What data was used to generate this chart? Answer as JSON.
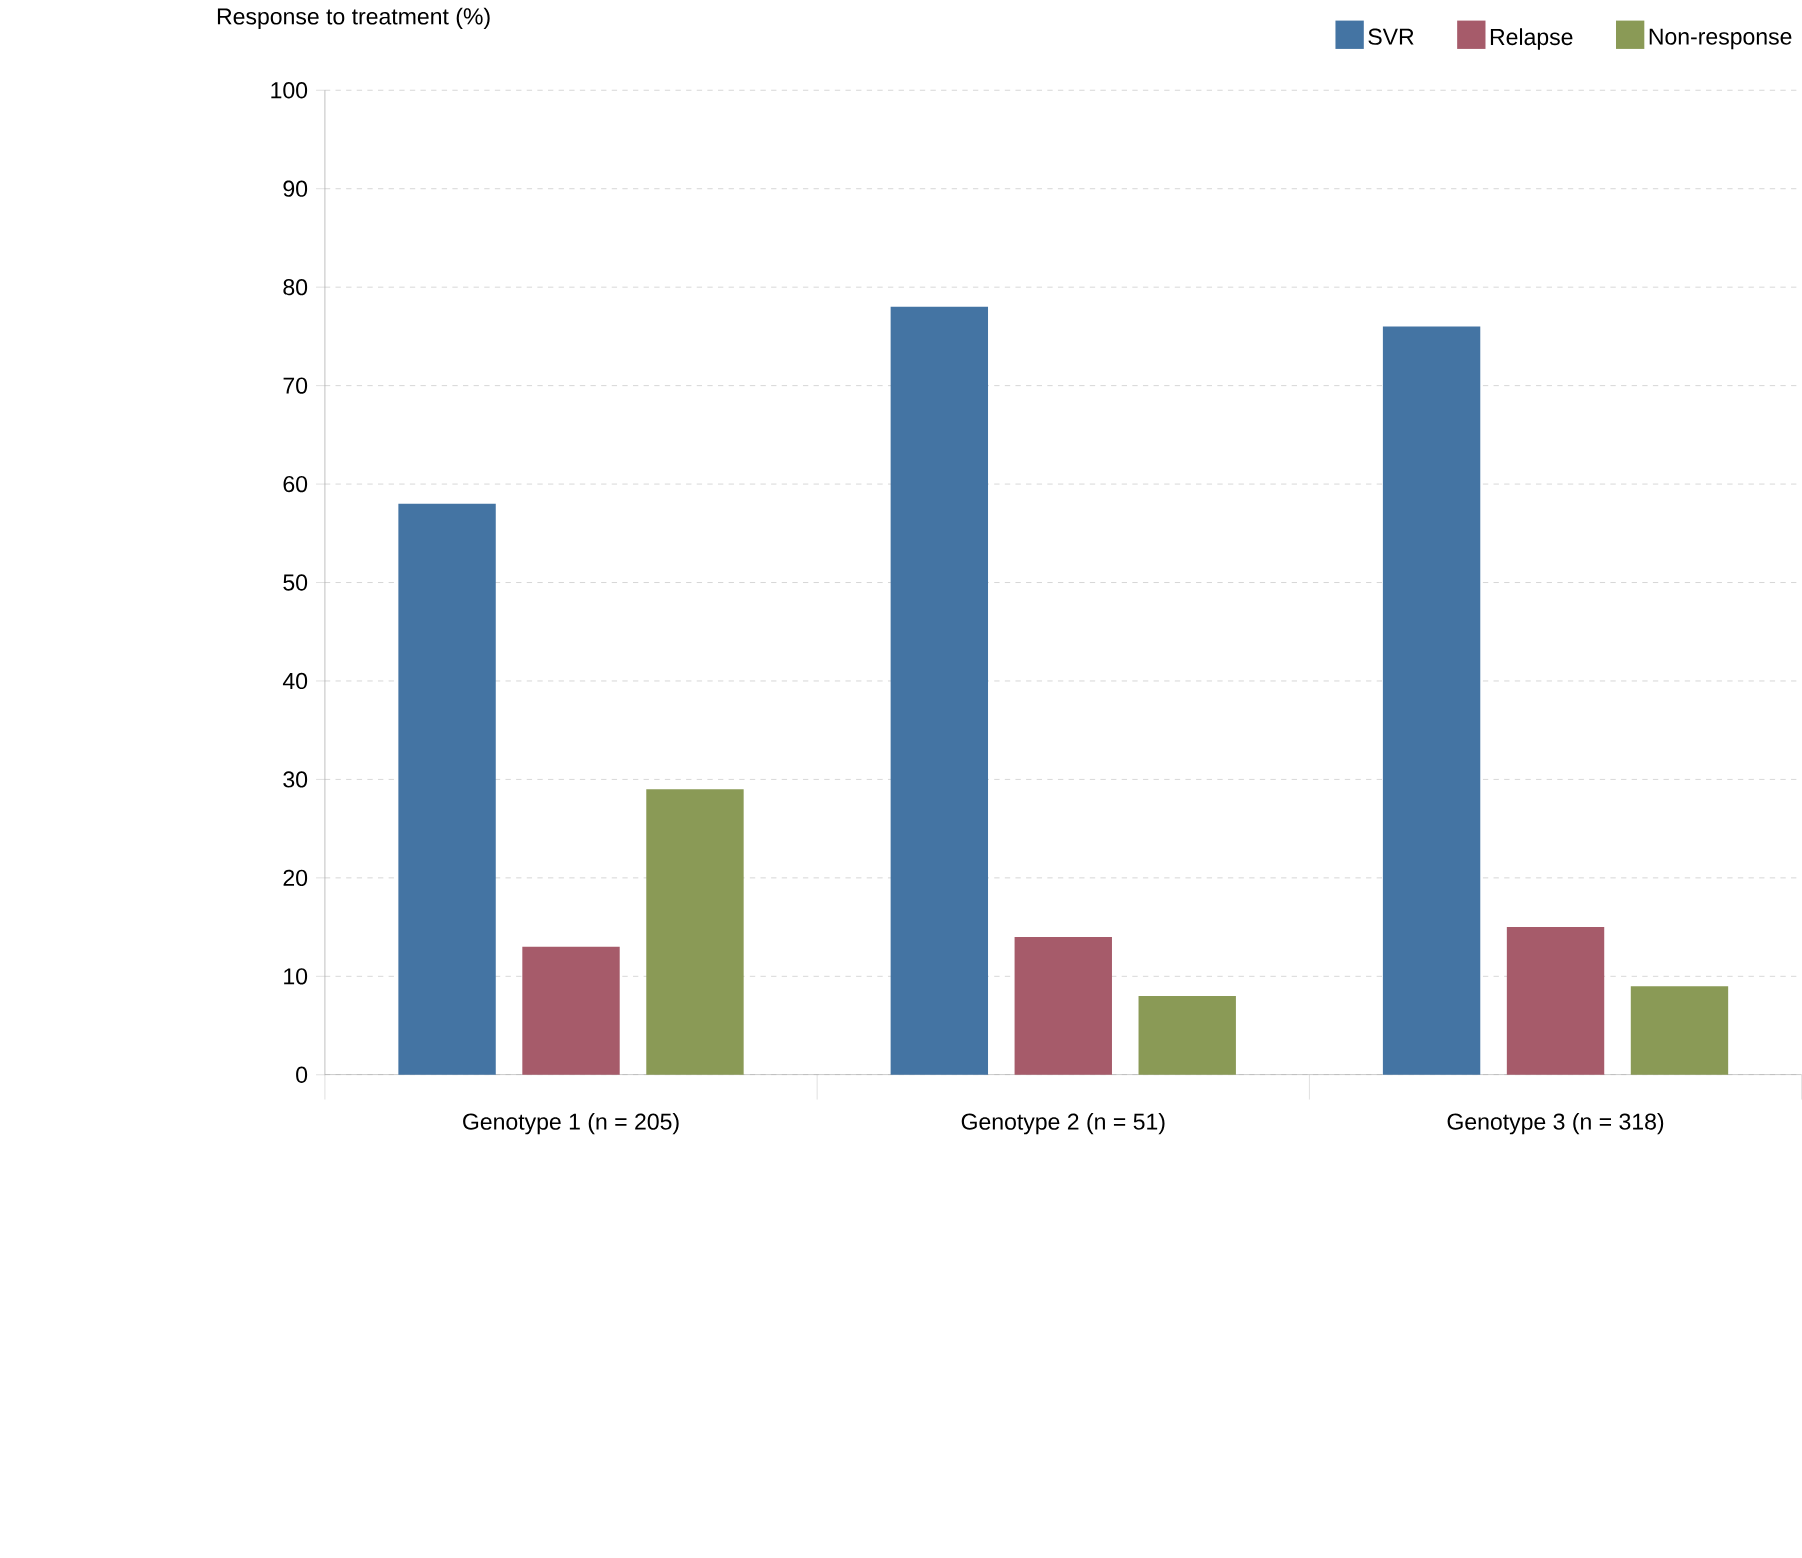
{
  "chart_data": {
    "type": "bar",
    "ylabel": "Response to treatment (%)",
    "categories": [
      "Genotype 1 (n = 205)",
      "Genotype 2 (n = 51)",
      "Genotype 3 (n = 318)"
    ],
    "series": [
      {
        "name": "SVR",
        "color": "#4474a3",
        "values": [
          58,
          78,
          76
        ]
      },
      {
        "name": "Relapse",
        "color": "#a65b6a",
        "values": [
          13,
          14,
          15
        ]
      },
      {
        "name": "Non-response",
        "color": "#8a9a56",
        "values": [
          29,
          8,
          9
        ]
      }
    ],
    "ylim": [
      0,
      100
    ],
    "yticks": [
      0,
      10,
      20,
      30,
      40,
      50,
      60,
      70,
      80,
      90,
      100
    ],
    "grid": "y",
    "legend": "top right"
  }
}
